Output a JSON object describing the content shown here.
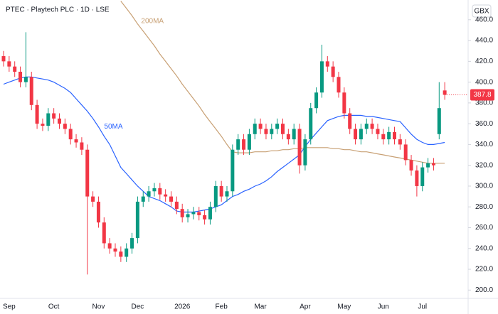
{
  "chart_data": {
    "type": "candlestick",
    "title": "PTEC · Playtech PLC · 1D · LSE",
    "currency": "GBX",
    "last_price": 387.8,
    "up_color": "#089981",
    "down_color": "#f23645",
    "categories": [
      null,
      "Sep",
      null,
      null,
      null,
      null,
      null,
      null,
      null,
      "Oct",
      null,
      null,
      null,
      null,
      null,
      null,
      null,
      "Nov",
      null,
      null,
      null,
      null,
      null,
      null,
      "Dec",
      null,
      null,
      null,
      null,
      null,
      null,
      null,
      "2026",
      null,
      null,
      null,
      null,
      null,
      null,
      "Feb",
      null,
      null,
      null,
      null,
      null,
      null,
      "Mar",
      null,
      null,
      null,
      null,
      null,
      null,
      null,
      "Apr",
      null,
      null,
      null,
      null,
      null,
      null,
      "May",
      null,
      null,
      null,
      null,
      null,
      null,
      "Jun",
      null,
      null,
      null,
      null,
      null,
      null,
      "Jul",
      null,
      null,
      null,
      null
    ],
    "open": [
      425,
      420,
      415,
      410,
      400,
      405,
      378,
      360,
      358,
      370,
      365,
      360,
      355,
      345,
      342,
      335,
      290,
      285,
      265,
      245,
      240,
      237,
      232,
      240,
      250,
      285,
      290,
      295,
      298,
      292,
      290,
      285,
      278,
      270,
      273,
      275,
      272,
      268,
      280,
      300,
      290,
      295,
      335,
      345,
      335,
      350,
      360,
      355,
      350,
      355,
      360,
      350,
      345,
      355,
      320,
      345,
      375,
      390,
      420,
      415,
      405,
      390,
      370,
      355,
      345,
      355,
      360,
      355,
      350,
      345,
      352,
      345,
      340,
      325,
      315,
      300,
      318,
      322,
      350,
      392
    ],
    "high": [
      430,
      425,
      420,
      415,
      448,
      410,
      383,
      365,
      375,
      375,
      370,
      365,
      360,
      350,
      347,
      340,
      295,
      290,
      270,
      250,
      245,
      242,
      245,
      255,
      290,
      295,
      300,
      303,
      303,
      297,
      295,
      290,
      283,
      278,
      280,
      280,
      277,
      285,
      305,
      305,
      300,
      340,
      350,
      350,
      355,
      365,
      365,
      360,
      360,
      365,
      365,
      355,
      360,
      360,
      350,
      380,
      395,
      436,
      425,
      420,
      410,
      395,
      375,
      360,
      360,
      365,
      365,
      360,
      355,
      357,
      357,
      350,
      345,
      330,
      320,
      323,
      327,
      327,
      400,
      400
    ],
    "low": [
      415,
      410,
      405,
      395,
      395,
      373,
      355,
      353,
      353,
      360,
      355,
      350,
      340,
      337,
      330,
      215,
      280,
      260,
      240,
      235,
      232,
      227,
      227,
      235,
      245,
      280,
      285,
      290,
      287,
      285,
      280,
      273,
      265,
      265,
      268,
      267,
      263,
      263,
      275,
      285,
      285,
      290,
      330,
      330,
      330,
      345,
      350,
      345,
      345,
      350,
      345,
      340,
      340,
      312,
      315,
      340,
      370,
      385,
      410,
      400,
      385,
      365,
      350,
      340,
      340,
      350,
      350,
      345,
      340,
      340,
      340,
      335,
      320,
      310,
      290,
      295,
      313,
      315,
      345,
      383
    ],
    "close": [
      420,
      415,
      410,
      400,
      405,
      378,
      360,
      358,
      370,
      365,
      360,
      355,
      345,
      342,
      335,
      290,
      285,
      265,
      245,
      240,
      237,
      232,
      240,
      250,
      285,
      290,
      295,
      298,
      292,
      290,
      285,
      278,
      270,
      273,
      275,
      272,
      268,
      280,
      300,
      290,
      295,
      335,
      345,
      335,
      350,
      360,
      355,
      350,
      355,
      360,
      350,
      345,
      355,
      320,
      345,
      375,
      390,
      420,
      415,
      405,
      390,
      370,
      355,
      345,
      355,
      360,
      355,
      350,
      345,
      352,
      345,
      340,
      325,
      315,
      300,
      318,
      322,
      320,
      375,
      387.8
    ],
    "series": [
      {
        "name": "50MA",
        "color": "#2962ff",
        "values": [
          398,
          400,
          402,
          404,
          405,
          405,
          404,
          403,
          402,
          400,
          397,
          394,
          390,
          384,
          378,
          372,
          365,
          357,
          348,
          340,
          329,
          318,
          312,
          306,
          300,
          295,
          290,
          288,
          286,
          283,
          280,
          276,
          275,
          275,
          275,
          276,
          277,
          278,
          280,
          282,
          286,
          290,
          292,
          295,
          297,
          300,
          302,
          305,
          309,
          314,
          318,
          322,
          326,
          330,
          338,
          345,
          351,
          357,
          363,
          365,
          367,
          368,
          368,
          368,
          368,
          367,
          367,
          366,
          365,
          364,
          363,
          362,
          356,
          350,
          345,
          342,
          340,
          340,
          341,
          342
        ]
      },
      {
        "name": "200MA",
        "color": "#c8a074",
        "values": [
          null,
          null,
          null,
          null,
          null,
          null,
          null,
          null,
          null,
          null,
          null,
          null,
          null,
          null,
          null,
          null,
          null,
          null,
          null,
          null,
          null,
          478,
          471,
          464,
          456,
          449,
          442,
          435,
          427,
          420,
          413,
          406,
          398,
          391,
          384,
          377,
          369,
          362,
          355,
          348,
          340,
          333,
          332,
          332,
          332,
          333,
          333,
          333,
          334,
          334,
          335,
          335,
          336,
          336,
          337,
          337,
          337,
          337,
          337,
          336,
          336,
          335,
          335,
          334,
          333,
          333,
          332,
          331,
          330,
          329,
          328,
          327,
          326,
          325,
          324,
          323,
          322,
          322,
          322,
          322
        ]
      }
    ],
    "ylim": [
      192,
      479
    ],
    "yticks": [
      {
        "value": 200,
        "label": "200.0"
      },
      {
        "value": 220,
        "label": "220.0"
      },
      {
        "value": 240,
        "label": "240.0"
      },
      {
        "value": 260,
        "label": "260.0"
      },
      {
        "value": 280,
        "label": "280.0"
      },
      {
        "value": 300,
        "label": "300.0"
      },
      {
        "value": 320,
        "label": "320.0"
      },
      {
        "value": 340,
        "label": "340.0"
      },
      {
        "value": 360,
        "label": "360.0"
      },
      {
        "value": 380,
        "label": "380.0"
      },
      {
        "value": 400,
        "label": "400.0"
      },
      {
        "value": 420,
        "label": "420.0"
      },
      {
        "value": 440,
        "label": "440.0"
      },
      {
        "value": 460,
        "label": "460.0"
      }
    ],
    "grid": false
  }
}
